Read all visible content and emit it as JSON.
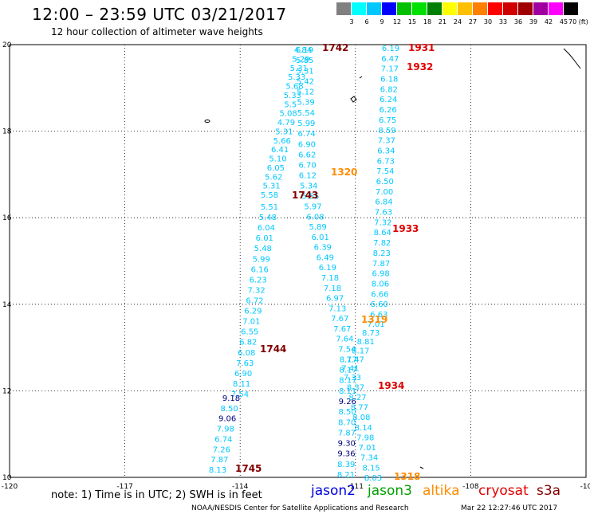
{
  "header": {
    "title": "12:00 – 23:59 UTC 03/21/2017",
    "subtitle": "12 hour collection of altimeter wave heights"
  },
  "colorbar": {
    "labels": [
      "3",
      "6",
      "9",
      "12",
      "15",
      "18",
      "21",
      "24",
      "27",
      "30",
      "33",
      "36",
      "39",
      "42",
      "45",
      "70 (ft)"
    ],
    "colors": [
      "#808080",
      "#00ffff",
      "#00c8ff",
      "#0000ff",
      "#00c000",
      "#00e000",
      "#008000",
      "#ffff00",
      "#ffc000",
      "#ff8000",
      "#ff0000",
      "#d00000",
      "#a00000",
      "#a000a0",
      "#ff00ff",
      "#000000"
    ]
  },
  "map": {
    "lon_labels": [
      "-120",
      "-117",
      "-114",
      "-111",
      "-108",
      "-10"
    ],
    "lat_labels": [
      "20",
      "18",
      "16",
      "14",
      "12",
      "10"
    ]
  },
  "passes": [
    {
      "label": "1742",
      "color": "#800000",
      "points": [
        [
          "4.84",
          "#00c8ff"
        ],
        [
          "5.29",
          "#00c8ff"
        ],
        [
          "5.31",
          "#00c8ff"
        ],
        [
          "5.33",
          "#00c8ff"
        ],
        [
          "5.68",
          "#00c8ff"
        ],
        [
          "5.33",
          "#00c8ff"
        ],
        [
          "5.5",
          "#00c8ff"
        ],
        [
          "5.08",
          "#00c8ff"
        ],
        [
          "4.79",
          "#00c8ff"
        ],
        [
          "5.31",
          "#00c8ff"
        ],
        [
          "5.66",
          "#00c8ff"
        ],
        [
          "6.41",
          "#00c8ff"
        ],
        [
          "5.10",
          "#00c8ff"
        ],
        [
          "6.05",
          "#00c8ff"
        ],
        [
          "5.62",
          "#00c8ff"
        ],
        [
          "5.31",
          "#00c8ff"
        ],
        [
          "5.58",
          "#00c8ff"
        ]
      ]
    },
    {
      "label": "1743",
      "color": "#800000",
      "points": [
        [
          "6.19",
          "#00c8ff"
        ],
        [
          "5.85",
          "#00c8ff"
        ],
        [
          "5.31",
          "#00c8ff"
        ],
        [
          "5.42",
          "#00c8ff"
        ],
        [
          "5.12",
          "#00c8ff"
        ],
        [
          "5.39",
          "#00c8ff"
        ],
        [
          "5.54",
          "#00c8ff"
        ],
        [
          "5.99",
          "#00c8ff"
        ],
        [
          "6.74",
          "#00c8ff"
        ],
        [
          "6.90",
          "#00c8ff"
        ],
        [
          "6.62",
          "#00c8ff"
        ],
        [
          "6.70",
          "#00c8ff"
        ],
        [
          "6.12",
          "#00c8ff"
        ],
        [
          "5.34",
          "#00c8ff"
        ],
        [
          "5.55",
          "#00c8ff"
        ],
        [
          "5.97",
          "#00c8ff"
        ],
        [
          "6.08",
          "#00c8ff"
        ],
        [
          "5.89",
          "#00c8ff"
        ],
        [
          "6.01",
          "#00c8ff"
        ],
        [
          "6.39",
          "#00c8ff"
        ],
        [
          "6.49",
          "#00c8ff"
        ],
        [
          "6.19",
          "#00c8ff"
        ],
        [
          "7.18",
          "#00c8ff"
        ],
        [
          "7.18",
          "#00c8ff"
        ],
        [
          "6.97",
          "#00c8ff"
        ],
        [
          "7.13",
          "#00c8ff"
        ],
        [
          "7.67",
          "#00c8ff"
        ],
        [
          "7.67",
          "#00c8ff"
        ],
        [
          "7.64",
          "#00c8ff"
        ],
        [
          "7.54",
          "#00c8ff"
        ],
        [
          "8.17",
          "#00c8ff"
        ],
        [
          "8.17",
          "#00c8ff"
        ],
        [
          "8.17",
          "#00c8ff"
        ],
        [
          "8.11",
          "#00c8ff"
        ],
        [
          "9.26",
          "#000080"
        ],
        [
          "8.50",
          "#00c8ff"
        ],
        [
          "8.70",
          "#00c8ff"
        ],
        [
          "7.87",
          "#00c8ff"
        ],
        [
          "9.30",
          "#000080"
        ],
        [
          "9.36",
          "#000080"
        ],
        [
          "8.39",
          "#00c8ff"
        ],
        [
          "8.21",
          "#00c8ff"
        ]
      ]
    },
    {
      "label": "1744",
      "color": "#800000",
      "points": [
        [
          "5.51",
          "#00c8ff"
        ],
        [
          "5.48",
          "#00c8ff"
        ],
        [
          "6.04",
          "#00c8ff"
        ],
        [
          "6.01",
          "#00c8ff"
        ],
        [
          "5.48",
          "#00c8ff"
        ],
        [
          "5.99",
          "#00c8ff"
        ],
        [
          "6.16",
          "#00c8ff"
        ],
        [
          "6.23",
          "#00c8ff"
        ],
        [
          "7.32",
          "#00c8ff"
        ],
        [
          "6.72",
          "#00c8ff"
        ],
        [
          "6.29",
          "#00c8ff"
        ],
        [
          "7.01",
          "#00c8ff"
        ],
        [
          "6.55",
          "#00c8ff"
        ],
        [
          "6.82",
          "#00c8ff"
        ],
        [
          "6.08",
          "#00c8ff"
        ],
        [
          "7.63",
          "#00c8ff"
        ],
        [
          "6.90",
          "#00c8ff"
        ],
        [
          "8.11",
          "#00c8ff"
        ],
        [
          "7.54",
          "#00c8ff"
        ]
      ]
    },
    {
      "label": "1745",
      "color": "#800000",
      "points": [
        [
          "9.18",
          "#000080"
        ],
        [
          "8.50",
          "#00c8ff"
        ],
        [
          "9.06",
          "#000080"
        ],
        [
          "7.98",
          "#00c8ff"
        ],
        [
          "6.74",
          "#00c8ff"
        ],
        [
          "7.26",
          "#00c8ff"
        ],
        [
          "7.87",
          "#00c8ff"
        ],
        [
          "8.13",
          "#00c8ff"
        ]
      ]
    },
    {
      "label": "1931",
      "color": "#e00000",
      "points": [
        [
          "6.19",
          "#00c8ff"
        ],
        [
          "6.47",
          "#00c8ff"
        ],
        [
          "7.17",
          "#00c8ff"
        ],
        [
          "6.18",
          "#00c8ff"
        ],
        [
          "6.82",
          "#00c8ff"
        ],
        [
          "6.24",
          "#00c8ff"
        ],
        [
          "6.26",
          "#00c8ff"
        ],
        [
          "6.75",
          "#00c8ff"
        ],
        [
          "8.59",
          "#00c8ff"
        ],
        [
          "7.37",
          "#00c8ff"
        ],
        [
          "6.34",
          "#00c8ff"
        ],
        [
          "6.73",
          "#00c8ff"
        ],
        [
          "7.54",
          "#00c8ff"
        ],
        [
          "6.50",
          "#00c8ff"
        ],
        [
          "7.00",
          "#00c8ff"
        ],
        [
          "6.84",
          "#00c8ff"
        ],
        [
          "7.63",
          "#00c8ff"
        ],
        [
          "7.32",
          "#00c8ff"
        ],
        [
          "8.64",
          "#00c8ff"
        ],
        [
          "7.82",
          "#00c8ff"
        ],
        [
          "8.23",
          "#00c8ff"
        ],
        [
          "7.87",
          "#00c8ff"
        ],
        [
          "6.98",
          "#00c8ff"
        ],
        [
          "8.06",
          "#00c8ff"
        ],
        [
          "6.66",
          "#00c8ff"
        ],
        [
          "6.60",
          "#00c8ff"
        ],
        [
          "6.63",
          "#00c8ff"
        ],
        [
          "7.01",
          "#00c8ff"
        ],
        [
          "8.73",
          "#00c8ff"
        ],
        [
          "8.81",
          "#00c8ff"
        ],
        [
          "8.17",
          "#00c8ff"
        ],
        [
          "7.47",
          "#00c8ff"
        ],
        [
          "7.41",
          "#00c8ff"
        ],
        [
          "7.33",
          "#00c8ff"
        ],
        [
          "8.37",
          "#00c8ff"
        ],
        [
          "8.27",
          "#00c8ff"
        ],
        [
          "8.77",
          "#00c8ff"
        ],
        [
          "8.08",
          "#00c8ff"
        ],
        [
          "8.14",
          "#00c8ff"
        ],
        [
          "7.98",
          "#00c8ff"
        ],
        [
          "7.01",
          "#00c8ff"
        ],
        [
          "7.34",
          "#00c8ff"
        ],
        [
          "8.15",
          "#00c8ff"
        ],
        [
          "8.03",
          "#00c8ff"
        ]
      ]
    },
    {
      "label": "1932",
      "color": "#e00000",
      "points": []
    },
    {
      "label": "1933",
      "color": "#e00000",
      "points": []
    },
    {
      "label": "1934",
      "color": "#e00000",
      "points": []
    },
    {
      "label": "1318",
      "color": "#ff8c00",
      "points": []
    },
    {
      "label": "1319",
      "color": "#ff8c00",
      "points": []
    },
    {
      "label": "1320",
      "color": "#ff8c00",
      "points": []
    }
  ],
  "footer": {
    "note": "note:  1) Time is in UTC;  2) SWH is in feet",
    "satellites": [
      {
        "name": "jason2",
        "color": "#0000e0"
      },
      {
        "name": "jason3",
        "color": "#00a000"
      },
      {
        "name": "altika",
        "color": "#ff8c00"
      },
      {
        "name": "cryosat",
        "color": "#e00000"
      },
      {
        "name": "s3a",
        "color": "#800000"
      }
    ],
    "credit": "NOAA/NESDIS Center for Satellite Applications and Research",
    "generated": "Mar 22 12:27:46 UTC 2017"
  }
}
